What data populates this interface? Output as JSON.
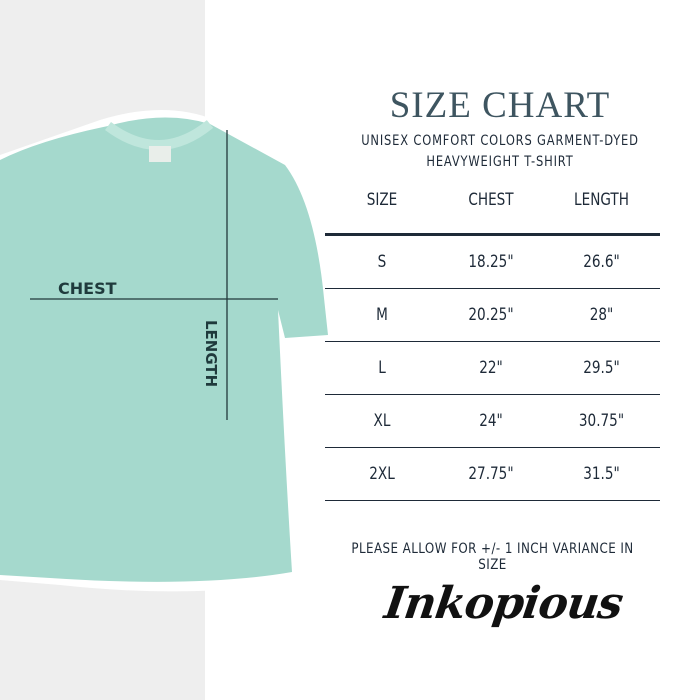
{
  "title": "SIZE CHART",
  "subtitle_line1": "UNISEX COMFORT COLORS GARMENT-DYED",
  "subtitle_line2": "HEAVYWEIGHT T-SHIRT",
  "table": {
    "headers": [
      "SIZE",
      "CHEST",
      "LENGTH"
    ],
    "rows": [
      [
        "S",
        "18.25\"",
        "26.6\""
      ],
      [
        "M",
        "20.25\"",
        "28\""
      ],
      [
        "L",
        "22\"",
        "29.5\""
      ],
      [
        "XL",
        "24\"",
        "30.75\""
      ],
      [
        "2XL",
        "27.75\"",
        "31.5\""
      ]
    ]
  },
  "note": "PLEASE ALLOW FOR +/- 1 INCH VARIANCE IN SIZE",
  "logo": "Inkopious",
  "shirt": {
    "chest_label": "CHEST",
    "length_label": "LENGTH",
    "color": "#a5d9cd"
  }
}
